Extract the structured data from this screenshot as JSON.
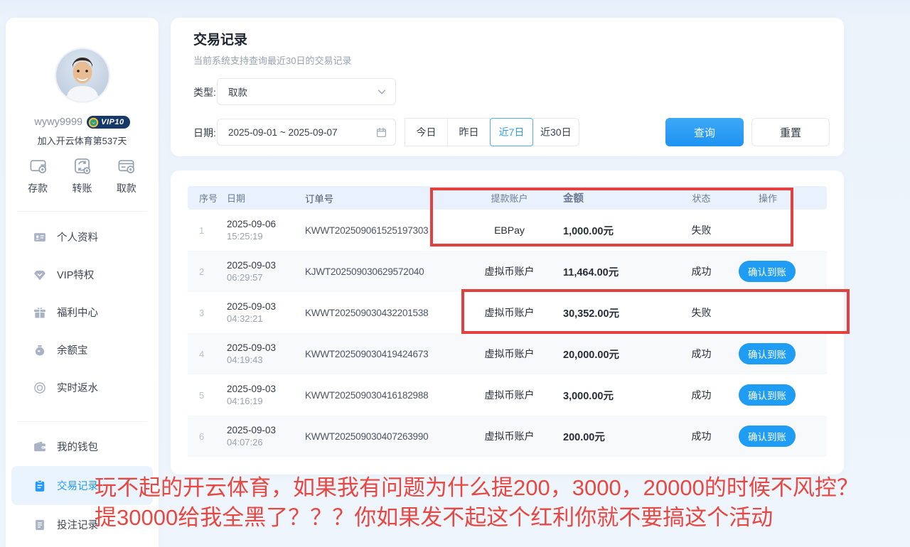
{
  "colors": {
    "accent": "#2599f8",
    "button_blue": "#1f9cf3",
    "annotation_red": "#e34040",
    "header_bg": "#e9f2fc"
  },
  "sidebar": {
    "username": "wywy9999",
    "vip_badge": "VIP10",
    "join_text": "加入开云体育第537天",
    "quick_actions": [
      {
        "label": "存款",
        "icon": "deposit-icon"
      },
      {
        "label": "转账",
        "icon": "transfer-icon"
      },
      {
        "label": "取款",
        "icon": "withdraw-icon"
      }
    ],
    "menu_primary": [
      {
        "label": "个人资料",
        "icon": "id-card-icon"
      },
      {
        "label": "VIP特权",
        "icon": "diamond-icon"
      },
      {
        "label": "福利中心",
        "icon": "gift-icon"
      },
      {
        "label": "余额宝",
        "icon": "moneybag-icon"
      },
      {
        "label": "实时返水",
        "icon": "rebate-icon"
      }
    ],
    "menu_secondary": [
      {
        "label": "我的钱包",
        "icon": "wallet-icon"
      },
      {
        "label": "交易记录",
        "icon": "records-icon",
        "active": true
      },
      {
        "label": "投注记录",
        "icon": "bets-icon"
      }
    ]
  },
  "filters": {
    "title": "交易记录",
    "subtitle": "当前系统支持查询最近30日的交易记录",
    "type_label": "类型:",
    "type_value": "取款",
    "date_label": "日期:",
    "date_value": "2025-09-01  ~  2025-09-07",
    "quick_ranges": [
      {
        "label": "今日"
      },
      {
        "label": "昨日"
      },
      {
        "label": "近7日",
        "active": true
      },
      {
        "label": "近30日"
      }
    ],
    "query_label": "查询",
    "reset_label": "重置"
  },
  "table": {
    "columns": [
      "序号",
      "日期",
      "订单号",
      "提款账户",
      "金额",
      "状态",
      "操作"
    ],
    "rows": [
      {
        "no": "1",
        "date": "2025-09-06",
        "time": "15:25:19",
        "order": "KWWT202509061525197303",
        "account": "EBPay",
        "amount": "1,000.00元",
        "status": "失败",
        "action": ""
      },
      {
        "no": "2",
        "date": "2025-09-03",
        "time": "06:29:57",
        "order": "KJWT202509030629572040",
        "account": "虚拟币账户",
        "amount": "11,464.00元",
        "status": "成功",
        "action": "确认到账"
      },
      {
        "no": "3",
        "date": "2025-09-03",
        "time": "04:32:21",
        "order": "KWWT202509030432201538",
        "account": "虚拟币账户",
        "amount": "30,352.00元",
        "status": "失败",
        "action": ""
      },
      {
        "no": "4",
        "date": "2025-09-03",
        "time": "04:19:43",
        "order": "KWWT202509030419424673",
        "account": "虚拟币账户",
        "amount": "20,000.00元",
        "status": "成功",
        "action": "确认到账"
      },
      {
        "no": "5",
        "date": "2025-09-03",
        "time": "04:16:19",
        "order": "KWWT202509030416182988",
        "account": "虚拟币账户",
        "amount": "3,000.00元",
        "status": "成功",
        "action": "确认到账"
      },
      {
        "no": "6",
        "date": "2025-09-03",
        "time": "04:07:26",
        "order": "KWWT202509030407263990",
        "account": "虚拟币账户",
        "amount": "200.00元",
        "status": "成功",
        "action": "确认到账"
      }
    ]
  },
  "annotations": {
    "complaint_line1": "玩不起的开云体育，如果我有问题为什么提200，3000，20000的时候不风控？",
    "complaint_line2": "提30000给我全黑了？？？你如果发不起这个红利你就不要搞这个活动"
  }
}
